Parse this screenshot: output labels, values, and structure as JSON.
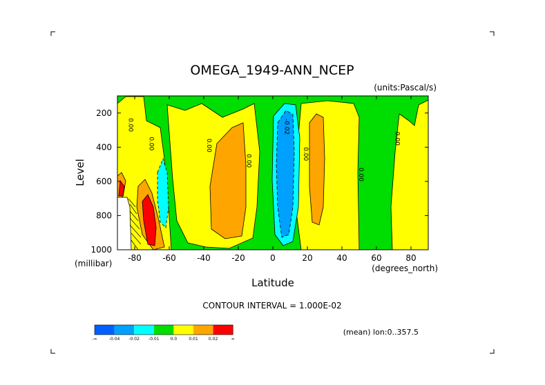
{
  "chart_data": {
    "type": "heatmap",
    "subtype": "filled-contour",
    "title": "OMEGA_1949-ANN_NCEP",
    "units_label": "(units:Pascal/s)",
    "xlabel": "Latitude",
    "ylabel": "Level",
    "x_unit_label": "(degrees_north)",
    "y_unit_label": "(millibar)",
    "xlim": [
      -90,
      90
    ],
    "ylim": [
      1000,
      100
    ],
    "x_ticks": [
      -80,
      -60,
      -40,
      -20,
      0,
      20,
      40,
      60,
      80
    ],
    "y_ticks": [
      200,
      400,
      600,
      800,
      1000
    ],
    "contour_interval_text": "CONTOUR INTERVAL = 1.000E-02",
    "mean_text": "(mean) lon:0..357.5",
    "colorbar": {
      "colors": [
        "#0060ff",
        "#00a0ff",
        "#00ffff",
        "#00dd00",
        "#ffff00",
        "#ffa500",
        "#ff0000"
      ],
      "labels": [
        "-∞",
        "-0.04",
        "-0.02",
        "-0.01",
        "0.0",
        "0.01",
        "0.02",
        "∞"
      ]
    },
    "contour_labels": [
      {
        "text": "0.00",
        "lat": -83.5,
        "p": 270
      },
      {
        "text": "0.00",
        "lat": -71.5,
        "p": 380
      },
      {
        "text": "0.00",
        "lat": -38,
        "p": 390
      },
      {
        "text": "0.00",
        "lat": -15,
        "p": 480
      },
      {
        "text": "-0.02",
        "lat": 7,
        "p": 280
      },
      {
        "text": "0.00",
        "lat": 18,
        "p": 440
      },
      {
        "text": "0.00",
        "lat": 50,
        "p": 560
      },
      {
        "text": "0.00",
        "lat": 71,
        "p": 350
      }
    ],
    "regions": [
      {
        "name": "polar-north-yellow",
        "color": "#ffff00",
        "bounds": {
          "lat": [
            73,
            90
          ],
          "p": [
            100,
            1000
          ]
        }
      },
      {
        "name": "subtropical-south-orange",
        "color": "#ffa500",
        "bounds": {
          "lat": [
            -36,
            -14
          ],
          "p": [
            280,
            900
          ]
        }
      },
      {
        "name": "itcz-blue",
        "color": "#00a0ff",
        "bounds": {
          "lat": [
            1,
            12
          ],
          "p": [
            180,
            900
          ]
        }
      },
      {
        "name": "itcz-cyan",
        "color": "#00ffff",
        "bounds": {
          "lat": [
            -1,
            15
          ],
          "p": [
            140,
            960
          ]
        }
      },
      {
        "name": "subtropical-north-orange",
        "color": "#ffa500",
        "bounds": {
          "lat": [
            18,
            27
          ],
          "p": [
            230,
            860
          ]
        }
      },
      {
        "name": "polar-south-red",
        "color": "#ff0000",
        "bounds": {
          "lat": [
            -77,
            -69
          ],
          "p": [
            650,
            950
          ]
        }
      },
      {
        "name": "antarctic-topography-mask",
        "color": "#ffffff",
        "bounds": {
          "lat": [
            -90,
            -81
          ],
          "p": [
            650,
            1000
          ]
        }
      }
    ]
  }
}
